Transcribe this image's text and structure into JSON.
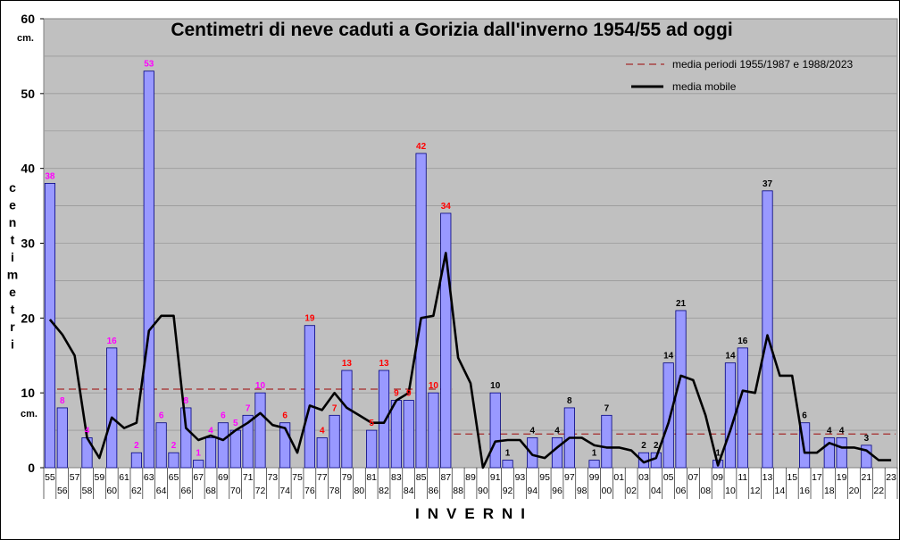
{
  "chart_data": {
    "type": "bar",
    "title": "Centimetri di neve caduti a Gorizia dall'inverno 1954/55 ad oggi",
    "ylabel": "centimetri",
    "yunit_top": "cm.",
    "yunit_side": "cm.",
    "xlabel": "INVERNI",
    "ylim": [
      0,
      60
    ],
    "yticks": [
      0,
      10,
      20,
      30,
      40,
      50,
      60
    ],
    "grid": true,
    "categories": [
      "55",
      "56",
      "57",
      "58",
      "59",
      "60",
      "61",
      "62",
      "63",
      "64",
      "65",
      "66",
      "67",
      "68",
      "69",
      "70",
      "71",
      "72",
      "73",
      "74",
      "75",
      "76",
      "77",
      "78",
      "79",
      "80",
      "81",
      "82",
      "83",
      "84",
      "85",
      "86",
      "87",
      "88",
      "89",
      "90",
      "91",
      "92",
      "93",
      "94",
      "95",
      "96",
      "97",
      "98",
      "99",
      "00",
      "01",
      "02",
      "03",
      "04",
      "05",
      "06",
      "07",
      "08",
      "09",
      "10",
      "11",
      "12",
      "13",
      "14",
      "15",
      "16",
      "17",
      "18",
      "19",
      "20",
      "21",
      "22",
      "23"
    ],
    "series": [
      {
        "type": "bar",
        "values": [
          38,
          8,
          0,
          4,
          0,
          16,
          0,
          2,
          53,
          6,
          2,
          8,
          1,
          4,
          6,
          5,
          7,
          10,
          0,
          6,
          0,
          19,
          4,
          7,
          13,
          0,
          5,
          13,
          9,
          9,
          42,
          10,
          34,
          0,
          0,
          0,
          10,
          1,
          0,
          4,
          0,
          4,
          8,
          0,
          1,
          7,
          0,
          0,
          2,
          2,
          14,
          21,
          0,
          0,
          1,
          14,
          16,
          0,
          37,
          0,
          0,
          6,
          0,
          4,
          4,
          0,
          3,
          0,
          0
        ],
        "labels": [
          "38",
          "8",
          "",
          "4",
          "",
          "16",
          "",
          "2",
          "53",
          "6",
          "2",
          "8",
          "1",
          "4",
          "6",
          "5",
          "7",
          "10",
          "",
          "6",
          "",
          "19",
          "4",
          "7",
          "13",
          "",
          "5",
          "13",
          "9",
          "9",
          "42",
          "10",
          "34",
          "",
          "",
          "",
          "10",
          "1",
          "",
          "4",
          "",
          "4",
          "8",
          "",
          "1",
          "7",
          "",
          "",
          "2",
          "2",
          "14",
          "21",
          "",
          "",
          "1",
          "14",
          "16",
          "",
          "37",
          "",
          "",
          "6",
          "",
          "4",
          "4",
          "",
          "3",
          "",
          ""
        ]
      },
      {
        "name": "media mobile",
        "type": "line",
        "values": [
          19.8,
          17.8,
          15,
          4,
          1.3,
          6.7,
          5.3,
          6,
          18.3,
          20.3,
          20.3,
          5.3,
          3.7,
          4.3,
          3.7,
          5,
          6,
          7.3,
          5.7,
          5.3,
          2,
          8.3,
          7.7,
          10,
          8,
          7,
          6,
          6,
          9,
          10,
          20,
          20.3,
          28.7,
          14.7,
          11.3,
          0,
          3.5,
          3.7,
          3.7,
          1.7,
          1.3,
          2.7,
          4,
          4,
          3,
          2.7,
          2.7,
          2.3,
          0.7,
          1.3,
          6,
          12.3,
          11.7,
          7,
          0.3,
          5,
          10.3,
          10,
          17.7,
          12.3,
          12.3,
          2,
          2,
          3.3,
          2.7,
          2.7,
          2.3,
          1,
          1
        ]
      },
      {
        "name": "media periodi  1955/1987  e  1988/2023",
        "type": "reference",
        "segments": [
          {
            "from": "55",
            "to": "87",
            "value": 10.5
          },
          {
            "from": "88",
            "to": "23",
            "value": 4.5
          }
        ]
      }
    ],
    "legend_position": "top-right",
    "colors": {
      "plot_bg": "#c0c0c0",
      "bar_fill": "#9999ff",
      "bar_stroke": "#000080",
      "moving_avg": "#000000",
      "ref_line": "#a52a2a",
      "label_magenta": "#ff00ff",
      "label_red": "#ff0000",
      "label_black": "#000000"
    },
    "label_color_groups": [
      {
        "from": "55",
        "to": "72",
        "color": "#ff00ff"
      },
      {
        "from": "73",
        "to": "88",
        "color": "#ff0000"
      },
      {
        "from": "89",
        "to": "23",
        "color": "#000000"
      }
    ]
  }
}
